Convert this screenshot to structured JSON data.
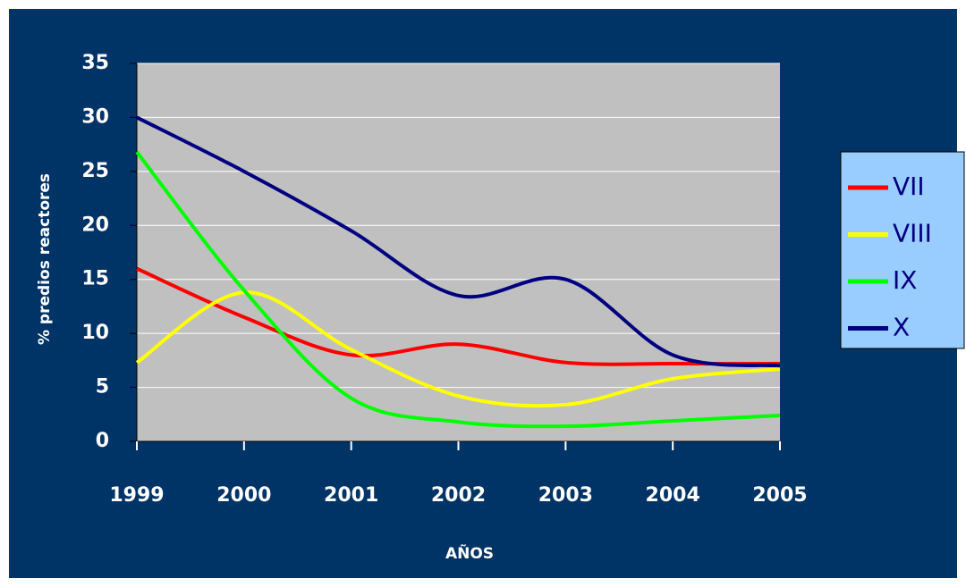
{
  "chart_data": {
    "type": "line",
    "x_label": "AÑOS",
    "y_label": "% predios reactores",
    "x": [
      1999,
      2000,
      2001,
      2002,
      2003,
      2004,
      2005
    ],
    "xlim": [
      1999,
      2005
    ],
    "xticks": [
      1999,
      2000,
      2001,
      2002,
      2003,
      2004,
      2005
    ],
    "ylim": [
      0,
      35
    ],
    "yticks": [
      0,
      5,
      10,
      15,
      20,
      25,
      30,
      35
    ],
    "grid": true,
    "smooth": true,
    "legend": "right",
    "series": [
      {
        "name": "VII",
        "color": "#ff0000",
        "values": [
          16,
          11.5,
          8,
          9,
          7.3,
          7.2,
          7.2
        ]
      },
      {
        "name": "VIII",
        "color": "#ffff00",
        "values": [
          7.3,
          13.8,
          8.5,
          4.2,
          3.4,
          5.8,
          6.7
        ]
      },
      {
        "name": "IX",
        "color": "#00ff00",
        "values": [
          26.8,
          14,
          4,
          1.8,
          1.4,
          1.9,
          2.4
        ]
      },
      {
        "name": "X",
        "color": "#000080",
        "values": [
          30,
          25,
          19.5,
          13.5,
          15,
          8,
          7
        ]
      }
    ]
  }
}
